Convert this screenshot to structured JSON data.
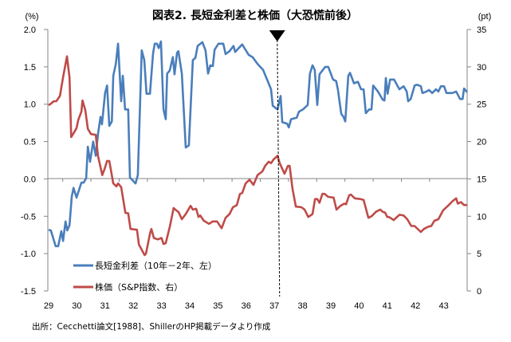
{
  "chart_data": {
    "type": "line",
    "title": "図表2. 長短金利差と株価（大恐慌前後）",
    "y_left_unit": "(%)",
    "y_right_unit": "(pt)",
    "y_left_range": [
      -1.5,
      2.0
    ],
    "y_right_range": [
      0,
      35
    ],
    "y_left_ticks": [
      "2.0",
      "1.5",
      "1.0",
      "0.5",
      "0.0",
      "-0.5",
      "-1.0",
      "-1.5"
    ],
    "y_left_tick_values": [
      2.0,
      1.5,
      1.0,
      0.5,
      0.0,
      -0.5,
      -1.0,
      -1.5
    ],
    "y_right_ticks": [
      "35",
      "30",
      "25",
      "20",
      "15",
      "10",
      "5",
      "0"
    ],
    "y_right_tick_values": [
      35,
      30,
      25,
      20,
      15,
      10,
      5,
      0
    ],
    "x_range": [
      29,
      43.85
    ],
    "x_ticks": [
      "29",
      "30",
      "31",
      "32",
      "33",
      "34",
      "35",
      "36",
      "37",
      "38",
      "39",
      "40",
      "41",
      "42",
      "43"
    ],
    "marker": {
      "x": 37.1,
      "shape": "down-triangle",
      "line": "dashed"
    },
    "legend_position": "bottom-left",
    "source_note": "出所：Cecchetti論文[1988]、ShillerのHP掲載データより作成",
    "series": [
      {
        "name": "長短金利差（10年－2年、左）",
        "axis": "left",
        "color": "#4a7ebb",
        "points": [
          [
            29.0,
            -0.68
          ],
          [
            29.08,
            -0.69
          ],
          [
            29.25,
            -0.9
          ],
          [
            29.34,
            -0.9
          ],
          [
            29.45,
            -0.7
          ],
          [
            29.51,
            -0.83
          ],
          [
            29.6,
            -0.57
          ],
          [
            29.66,
            -0.69
          ],
          [
            29.74,
            -0.62
          ],
          [
            29.82,
            -0.24
          ],
          [
            29.88,
            -0.12
          ],
          [
            29.99,
            -0.25
          ],
          [
            30.16,
            -0.05
          ],
          [
            30.24,
            -0.05
          ],
          [
            30.33,
            0.01
          ],
          [
            30.39,
            0.43
          ],
          [
            30.47,
            0.23
          ],
          [
            30.58,
            0.5
          ],
          [
            30.67,
            0.31
          ],
          [
            30.75,
            0.6
          ],
          [
            30.84,
            0.83
          ],
          [
            30.89,
            0.73
          ],
          [
            31.0,
            1.15
          ],
          [
            31.07,
            1.25
          ],
          [
            31.15,
            0.71
          ],
          [
            31.24,
            0.77
          ],
          [
            31.29,
            1.38
          ],
          [
            31.38,
            1.54
          ],
          [
            31.46,
            1.81
          ],
          [
            31.57,
            1.04
          ],
          [
            31.63,
            1.38
          ],
          [
            31.71,
            0.93
          ],
          [
            31.82,
            0.93
          ],
          [
            31.88,
            0.02
          ],
          [
            32.08,
            -0.06
          ],
          [
            32.16,
            0.05
          ],
          [
            32.3,
            1.72
          ],
          [
            32.39,
            1.59
          ],
          [
            32.47,
            1.14
          ],
          [
            32.59,
            1.14
          ],
          [
            32.7,
            1.68
          ],
          [
            32.76,
            1.81
          ],
          [
            32.84,
            1.81
          ],
          [
            32.9,
            1.75
          ],
          [
            32.98,
            1.84
          ],
          [
            33.07,
            0.93
          ],
          [
            33.15,
            0.8
          ],
          [
            33.2,
            1.41
          ],
          [
            33.29,
            1.45
          ],
          [
            33.4,
            1.63
          ],
          [
            33.46,
            1.4
          ],
          [
            33.55,
            1.69
          ],
          [
            33.6,
            1.71
          ],
          [
            33.72,
            1.41
          ],
          [
            33.86,
            0.42
          ],
          [
            33.97,
            0.45
          ],
          [
            34.11,
            1.59
          ],
          [
            34.2,
            1.62
          ],
          [
            34.28,
            1.78
          ],
          [
            34.45,
            1.83
          ],
          [
            34.56,
            1.72
          ],
          [
            34.65,
            1.41
          ],
          [
            34.73,
            1.52
          ],
          [
            34.82,
            1.51
          ],
          [
            34.88,
            1.73
          ],
          [
            35.02,
            1.81
          ],
          [
            35.19,
            1.81
          ],
          [
            35.27,
            1.67
          ],
          [
            35.41,
            1.71
          ],
          [
            35.55,
            1.78
          ],
          [
            35.61,
            1.7
          ],
          [
            35.86,
            1.8
          ],
          [
            36.09,
            1.66
          ],
          [
            36.23,
            1.63
          ],
          [
            36.4,
            1.54
          ],
          [
            36.6,
            1.46
          ],
          [
            36.74,
            1.33
          ],
          [
            36.88,
            1.2
          ],
          [
            36.94,
            0.98
          ],
          [
            37.11,
            0.93
          ],
          [
            37.22,
            1.11
          ],
          [
            37.28,
            0.76
          ],
          [
            37.45,
            0.74
          ],
          [
            37.51,
            0.69
          ],
          [
            37.59,
            0.8
          ],
          [
            37.79,
            0.82
          ],
          [
            37.87,
            0.9
          ],
          [
            38.01,
            0.93
          ],
          [
            38.18,
            0.99
          ],
          [
            38.26,
            1.41
          ],
          [
            38.35,
            1.52
          ],
          [
            38.43,
            1.46
          ],
          [
            38.52,
            0.99
          ],
          [
            38.6,
            1.4
          ],
          [
            38.8,
            1.5
          ],
          [
            38.91,
            1.5
          ],
          [
            39.08,
            1.33
          ],
          [
            39.19,
            1.31
          ],
          [
            39.25,
            1.2
          ],
          [
            39.37,
            0.87
          ],
          [
            39.45,
            0.83
          ],
          [
            39.51,
            0.77
          ],
          [
            39.62,
            1.38
          ],
          [
            39.68,
            1.42
          ],
          [
            39.82,
            1.28
          ],
          [
            39.96,
            1.3
          ],
          [
            40.07,
            1.2
          ],
          [
            40.16,
            1.2
          ],
          [
            40.24,
            0.88
          ],
          [
            40.36,
            0.93
          ],
          [
            40.44,
            0.93
          ],
          [
            40.5,
            1.25
          ],
          [
            40.67,
            1.17
          ],
          [
            40.84,
            1.06
          ],
          [
            40.9,
            1.05
          ],
          [
            40.95,
            1.35
          ],
          [
            41.01,
            1.14
          ],
          [
            41.1,
            1.33
          ],
          [
            41.24,
            1.33
          ],
          [
            41.43,
            1.2
          ],
          [
            41.58,
            1.24
          ],
          [
            41.69,
            1.17
          ],
          [
            41.74,
            1.04
          ],
          [
            41.83,
            1.07
          ],
          [
            41.97,
            1.25
          ],
          [
            42.06,
            1.26
          ],
          [
            42.19,
            1.24
          ],
          [
            42.25,
            1.15
          ],
          [
            42.39,
            1.17
          ],
          [
            42.48,
            1.19
          ],
          [
            42.59,
            1.15
          ],
          [
            42.73,
            1.2
          ],
          [
            42.81,
            1.17
          ],
          [
            42.9,
            1.24
          ],
          [
            43.01,
            1.24
          ],
          [
            43.1,
            1.15
          ],
          [
            43.3,
            1.15
          ],
          [
            43.44,
            1.17
          ],
          [
            43.58,
            1.07
          ],
          [
            43.67,
            1.07
          ],
          [
            43.72,
            1.21
          ],
          [
            43.83,
            1.16
          ]
        ]
      },
      {
        "name": "株価（S&P指数、右）",
        "axis": "right",
        "color": "#be4b48",
        "points": [
          [
            29.0,
            24.86
          ],
          [
            29.08,
            25.07
          ],
          [
            29.18,
            25.4
          ],
          [
            29.27,
            25.4
          ],
          [
            29.4,
            26.1
          ],
          [
            29.51,
            28.6
          ],
          [
            29.65,
            31.4
          ],
          [
            29.74,
            28.6
          ],
          [
            29.8,
            20.6
          ],
          [
            29.88,
            21.1
          ],
          [
            29.99,
            21.8
          ],
          [
            30.05,
            22.9
          ],
          [
            30.16,
            24.0
          ],
          [
            30.2,
            25.5
          ],
          [
            30.3,
            24.2
          ],
          [
            30.39,
            21.7
          ],
          [
            30.5,
            21.0
          ],
          [
            30.67,
            20.9
          ],
          [
            30.75,
            18.1
          ],
          [
            30.9,
            15.5
          ],
          [
            30.98,
            16.3
          ],
          [
            31.07,
            17.4
          ],
          [
            31.15,
            17.4
          ],
          [
            31.29,
            14.4
          ],
          [
            31.4,
            14.0
          ],
          [
            31.46,
            14.4
          ],
          [
            31.57,
            13.9
          ],
          [
            31.72,
            10.45
          ],
          [
            31.82,
            10.4
          ],
          [
            31.9,
            8.3
          ],
          [
            32.13,
            8.2
          ],
          [
            32.2,
            6.2
          ],
          [
            32.4,
            4.8
          ],
          [
            32.45,
            5.0
          ],
          [
            32.6,
            7.8
          ],
          [
            32.64,
            8.3
          ],
          [
            32.73,
            7.1
          ],
          [
            32.87,
            6.9
          ],
          [
            33.0,
            7.1
          ],
          [
            33.07,
            6.3
          ],
          [
            33.15,
            6.4
          ],
          [
            33.3,
            8.7
          ],
          [
            33.43,
            11.1
          ],
          [
            33.55,
            10.7
          ],
          [
            33.6,
            10.6
          ],
          [
            33.72,
            9.6
          ],
          [
            33.86,
            10.3
          ],
          [
            34.03,
            11.4
          ],
          [
            34.11,
            10.9
          ],
          [
            34.23,
            11.0
          ],
          [
            34.31,
            9.9
          ],
          [
            34.37,
            10.1
          ],
          [
            34.5,
            9.4
          ],
          [
            34.68,
            9.0
          ],
          [
            34.82,
            9.3
          ],
          [
            34.97,
            9.3
          ],
          [
            35.13,
            8.4
          ],
          [
            35.27,
            9.8
          ],
          [
            35.41,
            10.3
          ],
          [
            35.53,
            11.2
          ],
          [
            35.67,
            11.5
          ],
          [
            35.78,
            13.0
          ],
          [
            35.86,
            13.1
          ],
          [
            35.98,
            14.4
          ],
          [
            36.12,
            14.9
          ],
          [
            36.26,
            14.2
          ],
          [
            36.4,
            15.5
          ],
          [
            36.57,
            16.0
          ],
          [
            36.68,
            16.8
          ],
          [
            36.8,
            17.3
          ],
          [
            36.88,
            17.1
          ],
          [
            36.97,
            17.6
          ],
          [
            37.11,
            18.1
          ],
          [
            37.19,
            17.1
          ],
          [
            37.36,
            15.7
          ],
          [
            37.48,
            16.75
          ],
          [
            37.54,
            16.75
          ],
          [
            37.64,
            13.7
          ],
          [
            37.76,
            11.3
          ],
          [
            37.96,
            11.2
          ],
          [
            38.07,
            10.9
          ],
          [
            38.2,
            9.9
          ],
          [
            38.35,
            10.3
          ],
          [
            38.44,
            12.3
          ],
          [
            38.52,
            12.3
          ],
          [
            38.6,
            11.8
          ],
          [
            38.7,
            13.0
          ],
          [
            38.78,
            13.0
          ],
          [
            38.9,
            12.6
          ],
          [
            39.1,
            12.5
          ],
          [
            39.2,
            10.9
          ],
          [
            39.34,
            11.4
          ],
          [
            39.48,
            11.7
          ],
          [
            39.54,
            11.6
          ],
          [
            39.65,
            12.8
          ],
          [
            39.71,
            12.9
          ],
          [
            39.85,
            12.4
          ],
          [
            40.05,
            12.3
          ],
          [
            40.16,
            12.2
          ],
          [
            40.33,
            9.8
          ],
          [
            40.44,
            10.0
          ],
          [
            40.6,
            10.6
          ],
          [
            40.75,
            10.9
          ],
          [
            40.84,
            10.6
          ],
          [
            40.92,
            10.5
          ],
          [
            41.0,
            9.9
          ],
          [
            41.06,
            9.9
          ],
          [
            41.23,
            9.5
          ],
          [
            41.43,
            10.2
          ],
          [
            41.58,
            10.1
          ],
          [
            41.71,
            9.6
          ],
          [
            41.85,
            8.7
          ],
          [
            41.97,
            8.7
          ],
          [
            42.19,
            7.9
          ],
          [
            42.3,
            8.3
          ],
          [
            42.45,
            8.6
          ],
          [
            42.56,
            8.7
          ],
          [
            42.67,
            9.4
          ],
          [
            42.81,
            9.6
          ],
          [
            42.98,
            10.8
          ],
          [
            43.15,
            11.4
          ],
          [
            43.32,
            12.05
          ],
          [
            43.44,
            12.4
          ],
          [
            43.5,
            11.7
          ],
          [
            43.61,
            11.9
          ],
          [
            43.72,
            11.5
          ],
          [
            43.83,
            11.5
          ]
        ]
      }
    ]
  }
}
